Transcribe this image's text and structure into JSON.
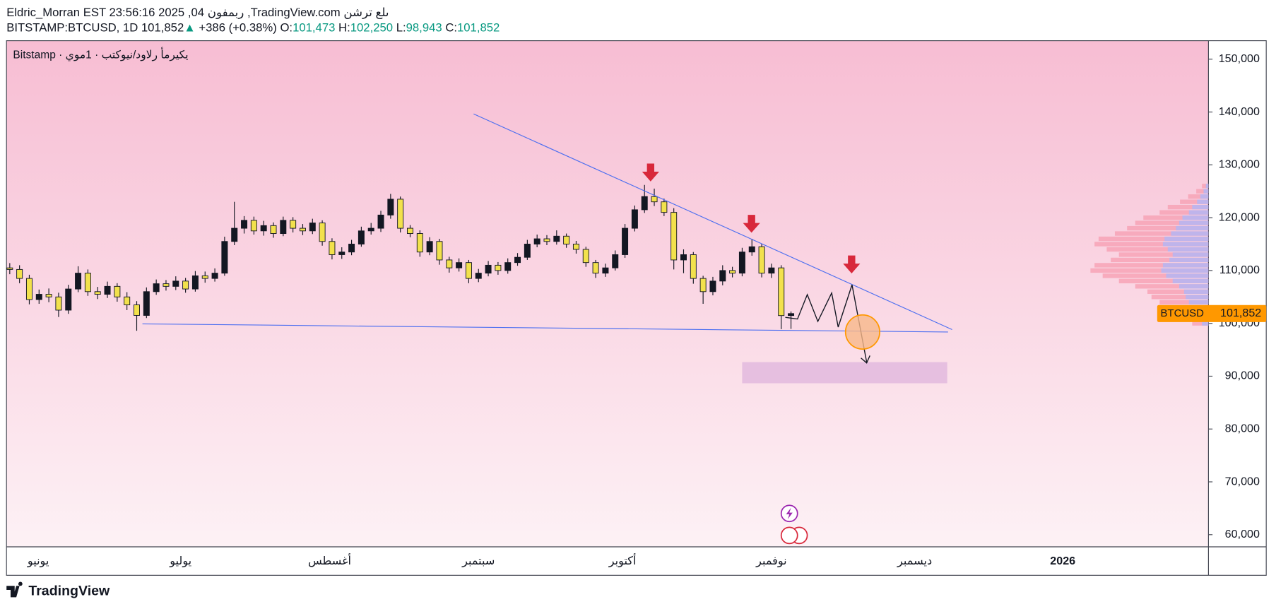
{
  "header": {
    "line1": "Eldric_Morran EST 23:56:16 2025 ,04 ربمفون ,TradingView.com ىلع ترشن",
    "symbol": "BITSTAMP:BTCUSD, 1D",
    "last": "101,852",
    "arrow": "▲",
    "change": "+386 (+0.38%)",
    "open_label": "O:",
    "open": "101,473",
    "high_label": "H:",
    "high": "102,250",
    "low_label": "L:",
    "low": "98,943",
    "close_label": "C:",
    "close": "101,852"
  },
  "chart_data": {
    "type": "candlestick",
    "legend": "Bitstamp · يكيرمأ رلاود/نيوكتب · 1موي",
    "series": [
      {
        "name": "BTCUSD",
        "open": [
          110500,
          110200,
          108500,
          104500,
          105500,
          105000,
          102500,
          106500,
          109500,
          106000,
          105500,
          107000,
          105000,
          103500,
          101500,
          106000,
          107500,
          107000,
          108000,
          106500,
          109000,
          108500,
          109500,
          115500,
          118000,
          119500,
          117500,
          118500,
          117000,
          119500,
          118000,
          117500,
          119000,
          115500,
          113000,
          113500,
          115000,
          117500,
          118000,
          120500,
          123500,
          118000,
          117000,
          113500,
          115500,
          112000,
          110500,
          111500,
          108500,
          109500,
          111000,
          110000,
          111500,
          112500,
          115000,
          116000,
          115500,
          116500,
          115000,
          114000,
          111500,
          109500,
          110500,
          113000,
          118000,
          121500,
          124000,
          123000,
          121000,
          112000,
          113000,
          108500,
          106000,
          108000,
          110000,
          109500,
          113500,
          114500,
          109500,
          110500,
          101473
        ],
        "high": [
          111400,
          111000,
          109200,
          106400,
          106600,
          105800,
          107300,
          110800,
          110200,
          106900,
          107900,
          107600,
          105900,
          104200,
          106800,
          108300,
          108200,
          108900,
          108600,
          109900,
          109800,
          110400,
          116400,
          123000,
          120300,
          120200,
          119400,
          119100,
          120200,
          120100,
          118800,
          119800,
          119500,
          116100,
          114400,
          115800,
          118300,
          119000,
          121300,
          124500,
          124000,
          118600,
          117600,
          116300,
          116000,
          112600,
          112300,
          112000,
          110300,
          111800,
          111600,
          112300,
          113300,
          115800,
          116800,
          116700,
          117600,
          117000,
          115600,
          114500,
          112000,
          111300,
          113800,
          118800,
          122300,
          126200,
          125500,
          123600,
          121800,
          114000,
          113500,
          109000,
          108800,
          111000,
          110700,
          114300,
          116000,
          115000,
          111300,
          111000,
          102250
        ],
        "low": [
          109300,
          107600,
          103600,
          103700,
          104000,
          101200,
          101800,
          105900,
          105200,
          104600,
          104800,
          104100,
          102500,
          98600,
          101000,
          105400,
          106200,
          106300,
          105800,
          106000,
          107700,
          107900,
          109000,
          114800,
          117000,
          116800,
          116600,
          116200,
          116500,
          117200,
          116700,
          116900,
          114700,
          112100,
          112200,
          112900,
          114500,
          116800,
          117300,
          119800,
          117200,
          116300,
          112600,
          112900,
          111100,
          109600,
          109800,
          107600,
          107800,
          108900,
          109200,
          109400,
          110900,
          112000,
          114400,
          114800,
          114900,
          114300,
          113200,
          110700,
          108600,
          108800,
          110000,
          112400,
          117400,
          120900,
          122200,
          120300,
          110200,
          109500,
          107500,
          103700,
          105300,
          107200,
          108700,
          108900,
          112800,
          108700,
          108600,
          98900,
          98943
        ],
        "close": [
          110200,
          108500,
          104500,
          105500,
          105000,
          102500,
          106500,
          109500,
          106000,
          105500,
          107000,
          105000,
          103500,
          101500,
          106000,
          107500,
          107000,
          108000,
          106500,
          109000,
          108500,
          109500,
          115500,
          118000,
          119500,
          117500,
          118500,
          117000,
          119500,
          118000,
          117500,
          119000,
          115500,
          113000,
          113500,
          115000,
          117500,
          118000,
          120500,
          123500,
          118000,
          117000,
          113500,
          115500,
          112000,
          110500,
          111500,
          108500,
          109500,
          111000,
          110000,
          111500,
          112500,
          115000,
          116000,
          115500,
          116500,
          115000,
          114000,
          111500,
          109500,
          110500,
          113000,
          118000,
          121500,
          124000,
          123000,
          121000,
          112000,
          113000,
          108500,
          106000,
          108000,
          110000,
          109500,
          113500,
          114500,
          109500,
          110500,
          101466,
          101852
        ]
      }
    ],
    "up_color": "#131722",
    "down_color": "#f2e14c",
    "last_price_label": "101,852",
    "ylim": [
      57700,
      153500
    ],
    "yticks": [
      {
        "value": 60000,
        "label": "60,000"
      },
      {
        "value": 70000,
        "label": "70,000"
      },
      {
        "value": 80000,
        "label": "80,000"
      },
      {
        "value": 90000,
        "label": "90,000"
      },
      {
        "value": 100000,
        "label": "100,000"
      },
      {
        "value": 110000,
        "label": "110,000"
      },
      {
        "value": 120000,
        "label": "120,000"
      },
      {
        "value": 130000,
        "label": "130,000"
      },
      {
        "value": 140000,
        "label": "140,000"
      },
      {
        "value": 150000,
        "label": "150,000"
      }
    ],
    "x_labels": [
      "يونيو",
      "يوليو",
      "أغسطس",
      "سبتمبر",
      "أكتوبر",
      "نوفمبر",
      "ديسمبر",
      "2026"
    ],
    "volume_profile": {
      "levels": [
        100000,
        101000,
        102000,
        103000,
        104000,
        105000,
        106000,
        107000,
        108000,
        109000,
        110000,
        111000,
        112000,
        113000,
        114000,
        115000,
        116000,
        117000,
        118000,
        119000,
        120000,
        121000,
        122000,
        123000,
        124000,
        125000,
        126000
      ],
      "values": [
        20,
        30,
        35,
        45,
        60,
        70,
        75,
        90,
        110,
        130,
        145,
        140,
        120,
        110,
        125,
        140,
        135,
        115,
        100,
        90,
        80,
        60,
        50,
        35,
        25,
        15,
        8
      ]
    }
  },
  "footer": {
    "logo": "TradingView"
  }
}
